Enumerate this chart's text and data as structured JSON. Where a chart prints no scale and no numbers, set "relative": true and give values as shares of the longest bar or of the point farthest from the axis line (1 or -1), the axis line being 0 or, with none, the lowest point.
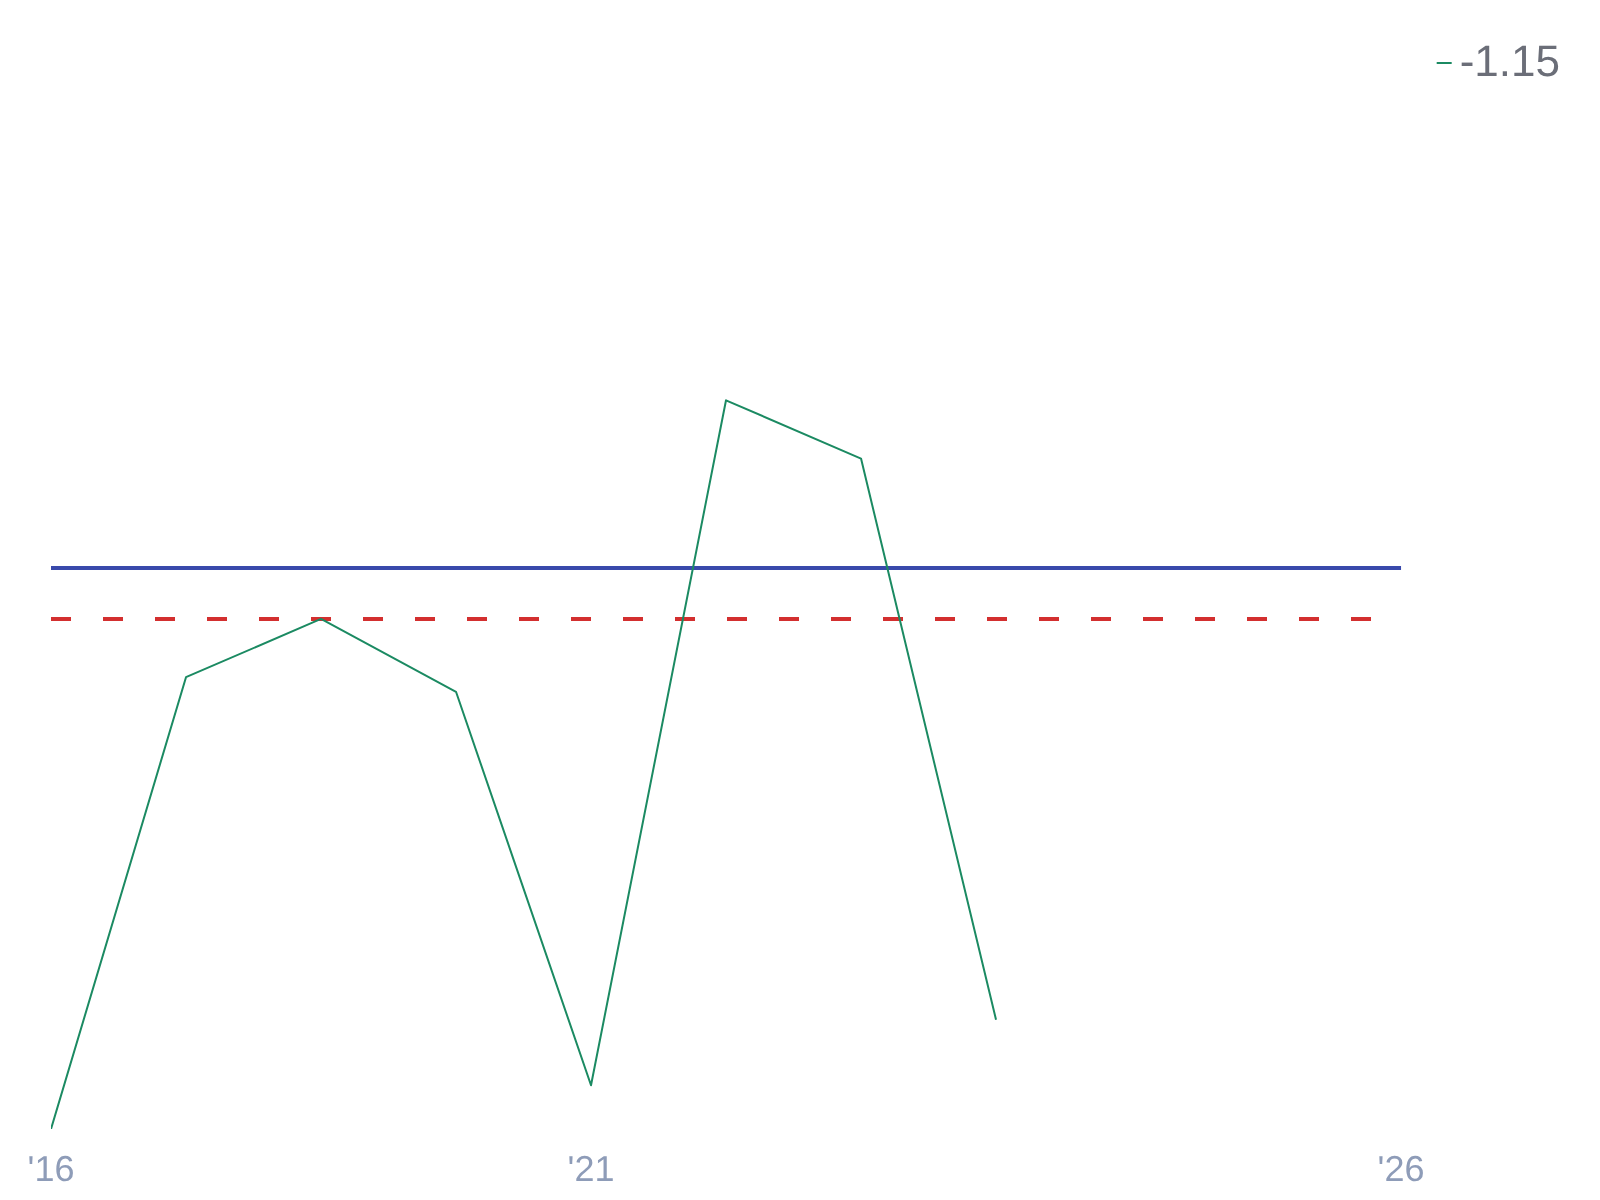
{
  "chart_data": {
    "type": "line",
    "relative": true,
    "categories": [
      "'16",
      null,
      null,
      null,
      "'21",
      null,
      null,
      null,
      null,
      null,
      "'26"
    ],
    "series": [
      {
        "name": "-1.15",
        "color": "#1b8a62",
        "values": [
          0,
          0.62,
          0.7,
          0.6,
          0.06,
          1,
          0.92,
          0.15,
          null,
          null,
          null
        ]
      }
    ],
    "ref_lines": [
      {
        "axis": "y",
        "value": 0.77,
        "color": "#3949ab",
        "line_style": "solid"
      },
      {
        "axis": "y",
        "value": 0.7,
        "color": "#d32f2f",
        "line_style": "dashed"
      }
    ],
    "legend": "top right",
    "grid": false
  }
}
